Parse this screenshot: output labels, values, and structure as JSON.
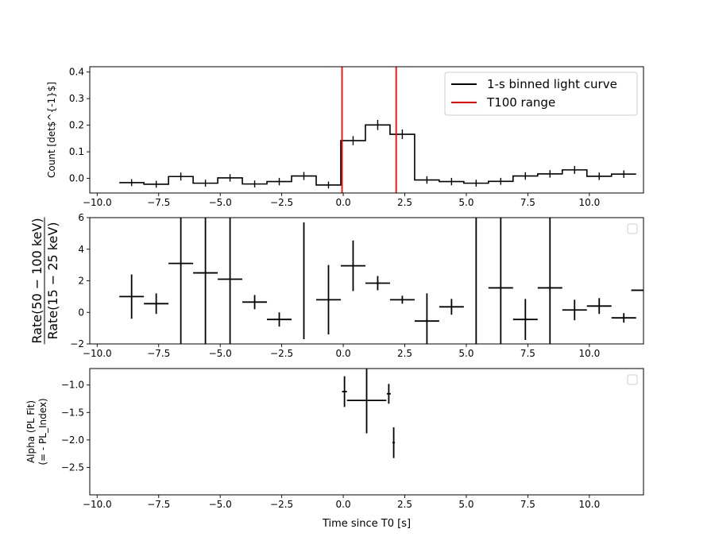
{
  "chart_data": [
    {
      "type": "line",
      "panel": "light-curve",
      "ylabel": "Count [det$^{-1}$]",
      "xlim": [
        -10.3,
        12.2
      ],
      "ylim": [
        -0.055,
        0.42
      ],
      "xticks": [
        -10.0,
        -7.5,
        -5.0,
        -2.5,
        0.0,
        2.5,
        5.0,
        7.5,
        10.0
      ],
      "xtick_labels": [
        "−10.0",
        "−7.5",
        "−5.0",
        "−2.5",
        "0.0",
        "2.5",
        "5.0",
        "7.5",
        "10.0"
      ],
      "yticks": [
        0.0,
        0.1,
        0.2,
        0.3,
        0.4
      ],
      "ytick_labels": [
        "0.0",
        "0.1",
        "0.2",
        "0.3",
        "0.4"
      ],
      "legend": {
        "placement": "top-right",
        "entries": [
          {
            "label": "1-s binned light curve",
            "color": "#000000"
          },
          {
            "label": "T100 range",
            "color": "#ff0000"
          }
        ]
      },
      "series": [
        {
          "name": "1-s binned light curve",
          "color": "#000000",
          "bin_width": 1.0,
          "x": [
            -8.6,
            -7.6,
            -6.6,
            -5.6,
            -4.6,
            -3.6,
            -2.6,
            -1.6,
            -0.6,
            0.4,
            1.4,
            2.4,
            3.4,
            4.4,
            5.4,
            6.4,
            7.4,
            8.4,
            9.4,
            10.4,
            11.4
          ],
          "y": [
            -0.016,
            -0.022,
            0.007,
            -0.018,
            0.002,
            -0.021,
            -0.012,
            0.009,
            -0.025,
            0.142,
            0.201,
            0.166,
            -0.006,
            -0.012,
            -0.018,
            -0.011,
            0.009,
            0.017,
            0.032,
            0.008,
            0.016
          ],
          "yerr": [
            0.013,
            0.013,
            0.015,
            0.013,
            0.014,
            0.013,
            0.014,
            0.015,
            0.013,
            0.017,
            0.019,
            0.018,
            0.014,
            0.014,
            0.013,
            0.013,
            0.014,
            0.014,
            0.015,
            0.014,
            0.014
          ]
        }
      ],
      "vlines": [
        {
          "name": "T100 range",
          "x": -0.05,
          "color": "#ff0000"
        },
        {
          "name": "T100 range",
          "x": 2.15,
          "color": "#ff0000"
        }
      ]
    },
    {
      "type": "scatter",
      "panel": "hardness-ratio",
      "ylabel_num": "Rate(50 − 100 keV)",
      "ylabel_den": "Rate(15 − 25 keV)",
      "xlim": [
        -10.3,
        12.2
      ],
      "ylim": [
        -2,
        6
      ],
      "xticks": [
        -10.0,
        -7.5,
        -5.0,
        -2.5,
        0.0,
        2.5,
        5.0,
        7.5,
        10.0
      ],
      "xtick_labels": [
        "−10.0",
        "−7.5",
        "−5.0",
        "−2.5",
        "0.0",
        "2.5",
        "5.0",
        "7.5",
        "10.0"
      ],
      "yticks": [
        -2,
        0,
        2,
        4,
        6
      ],
      "ytick_labels": [
        "−2",
        "0",
        "2",
        "4",
        "6"
      ],
      "legend": {
        "placement": "top-right",
        "entries": []
      },
      "series": [
        {
          "color": "#000000",
          "x": [
            -8.6,
            -7.6,
            -6.6,
            -5.6,
            -4.6,
            -3.6,
            -2.6,
            -1.6,
            -0.6,
            0.4,
            1.4,
            2.4,
            3.4,
            4.4,
            5.4,
            6.4,
            7.4,
            8.4,
            9.4,
            10.4,
            11.4,
            12.2
          ],
          "y": [
            1.0,
            0.55,
            3.1,
            2.5,
            2.1,
            0.65,
            -0.45,
            2.0,
            0.8,
            2.95,
            1.85,
            0.8,
            -0.55,
            0.35,
            2.0,
            1.55,
            -0.45,
            1.55,
            0.15,
            0.4,
            -0.35,
            1.4
          ],
          "yerr": [
            1.4,
            0.65,
            9.0,
            9.0,
            9.0,
            0.45,
            0.45,
            3.7,
            2.2,
            1.6,
            0.45,
            0.25,
            1.75,
            0.5,
            9.0,
            9.0,
            1.3,
            9.0,
            0.65,
            0.5,
            0.3,
            0.0
          ],
          "xerr": [
            0.5,
            0.5,
            0.5,
            0.5,
            0.5,
            0.5,
            0.5,
            0.0,
            0.5,
            0.5,
            0.5,
            0.5,
            0.5,
            0.5,
            0.0,
            0.5,
            0.5,
            0.5,
            0.5,
            0.5,
            0.5,
            0.5
          ]
        }
      ]
    },
    {
      "type": "scatter",
      "panel": "spectral-index",
      "ylabel_line1": "Alpha (PL Fit)",
      "ylabel_line2": "(= - PL_Index)",
      "xlabel": "Time since T0 [s]",
      "xlim": [
        -10.3,
        12.2
      ],
      "ylim": [
        -3.0,
        -0.7
      ],
      "xticks": [
        -10.0,
        -7.5,
        -5.0,
        -2.5,
        0.0,
        2.5,
        5.0,
        7.5,
        10.0
      ],
      "xtick_labels": [
        "−10.0",
        "−7.5",
        "−5.0",
        "−2.5",
        "0.0",
        "2.5",
        "5.0",
        "7.5",
        "10.0"
      ],
      "yticks": [
        -1.0,
        -1.5,
        -2.0,
        -2.5
      ],
      "ytick_labels": [
        "−1.0",
        "−1.5",
        "−2.0",
        "−2.5"
      ],
      "legend": {
        "placement": "top-right",
        "entries": []
      },
      "series": [
        {
          "color": "#000000",
          "x": [
            0.05,
            0.95,
            1.85,
            2.05
          ],
          "xerr": [
            0.1,
            0.8,
            0.08,
            0.05
          ],
          "y": [
            -1.12,
            -1.28,
            -1.16,
            -2.05
          ],
          "yerr": [
            0.28,
            0.6,
            0.18,
            0.28
          ]
        }
      ]
    }
  ]
}
